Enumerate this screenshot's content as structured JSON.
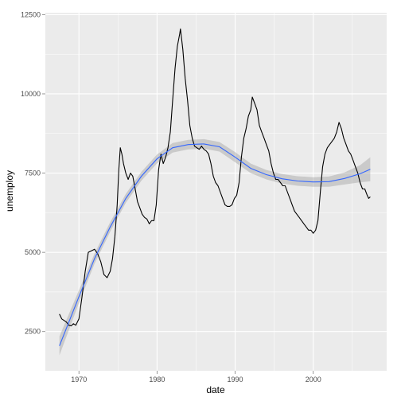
{
  "chart_data": {
    "type": "line",
    "xlabel": "date",
    "ylabel": "unemploy",
    "xlim": [
      1965.7,
      2009.4
    ],
    "ylim": [
      1263,
      12560
    ],
    "x_ticks": [
      1970,
      1980,
      1990,
      2000
    ],
    "y_ticks": [
      2500,
      5000,
      7500,
      10000,
      12500
    ],
    "grid": true,
    "colors": {
      "panel": "#ebebeb",
      "grid": "#ffffff",
      "data_line": "#000000",
      "smooth_line": "#3366ff",
      "ribbon": "#999999"
    },
    "series": [
      {
        "values_kind": "observed",
        "x": [
          1967.5,
          1967.8,
          1968.1,
          1968.4,
          1968.7,
          1969.0,
          1969.3,
          1969.6,
          1970.0,
          1970.4,
          1970.8,
          1971.2,
          1971.6,
          1972.0,
          1972.4,
          1972.8,
          1973.2,
          1973.6,
          1974.0,
          1974.3,
          1974.6,
          1974.9,
          1975.1,
          1975.3,
          1975.5,
          1975.7,
          1976.0,
          1976.3,
          1976.6,
          1976.9,
          1977.2,
          1977.5,
          1977.8,
          1978.1,
          1978.4,
          1978.7,
          1979.0,
          1979.3,
          1979.6,
          1979.9,
          1980.2,
          1980.5,
          1980.8,
          1981.1,
          1981.4,
          1981.7,
          1982.0,
          1982.3,
          1982.6,
          1982.9,
          1983.0,
          1983.3,
          1983.6,
          1983.9,
          1984.2,
          1984.5,
          1984.8,
          1985.1,
          1985.4,
          1985.7,
          1986.0,
          1986.3,
          1986.6,
          1986.9,
          1987.2,
          1987.5,
          1987.8,
          1988.1,
          1988.4,
          1988.7,
          1989.0,
          1989.3,
          1989.6,
          1989.9,
          1990.2,
          1990.5,
          1990.8,
          1991.1,
          1991.4,
          1991.7,
          1992.0,
          1992.2,
          1992.5,
          1992.8,
          1993.1,
          1993.4,
          1993.7,
          1994.0,
          1994.3,
          1994.6,
          1994.9,
          1995.2,
          1995.5,
          1995.8,
          1996.1,
          1996.4,
          1996.7,
          1997.0,
          1997.3,
          1997.6,
          1997.9,
          1998.2,
          1998.5,
          1998.8,
          1999.1,
          1999.4,
          1999.7,
          2000.0,
          2000.3,
          2000.6,
          2000.9,
          2001.2,
          2001.5,
          2001.8,
          2002.1,
          2002.4,
          2002.7,
          2003.0,
          2003.3,
          2003.6,
          2003.9,
          2004.2,
          2004.5,
          2004.8,
          2005.1,
          2005.4,
          2005.7,
          2006.0,
          2006.3,
          2006.6,
          2006.9,
          2007.1,
          2007.3
        ],
        "y": [
          3050,
          2900,
          2850,
          2800,
          2700,
          2680,
          2750,
          2700,
          2900,
          3600,
          4400,
          5000,
          5050,
          5100,
          4950,
          4700,
          4300,
          4200,
          4400,
          4800,
          5500,
          6500,
          7600,
          8300,
          8100,
          7800,
          7500,
          7300,
          7500,
          7400,
          7000,
          6600,
          6400,
          6200,
          6100,
          6050,
          5900,
          6000,
          6000,
          6500,
          7600,
          8100,
          7800,
          8000,
          8300,
          8800,
          9800,
          10800,
          11500,
          11900,
          12050,
          11400,
          10500,
          9800,
          9000,
          8600,
          8350,
          8300,
          8250,
          8350,
          8250,
          8200,
          8100,
          7800,
          7400,
          7200,
          7100,
          6900,
          6700,
          6500,
          6450,
          6450,
          6500,
          6700,
          6800,
          7200,
          8000,
          8600,
          8900,
          9300,
          9500,
          9900,
          9700,
          9500,
          9000,
          8800,
          8600,
          8400,
          8200,
          7800,
          7500,
          7300,
          7300,
          7200,
          7100,
          7100,
          6900,
          6700,
          6500,
          6300,
          6200,
          6100,
          6000,
          5900,
          5800,
          5700,
          5700,
          5600,
          5700,
          6000,
          6900,
          7700,
          8100,
          8300,
          8400,
          8500,
          8600,
          8800,
          9100,
          8900,
          8600,
          8400,
          8200,
          8100,
          7900,
          7700,
          7500,
          7200,
          7000,
          7000,
          6800,
          6700,
          6750
        ]
      },
      {
        "values_kind": "smoothed",
        "x": [
          1967.5,
          1970,
          1972,
          1974,
          1976,
          1978,
          1980,
          1982,
          1984,
          1986,
          1988,
          1990,
          1992,
          1994,
          1996,
          1998,
          2000,
          2002,
          2004,
          2006,
          2007.3
        ],
        "y": [
          2050,
          3600,
          4800,
          5800,
          6700,
          7400,
          7950,
          8300,
          8400,
          8420,
          8330,
          8000,
          7650,
          7450,
          7320,
          7250,
          7220,
          7230,
          7330,
          7480,
          7620
        ],
        "se": [
          300,
          200,
          160,
          150,
          140,
          140,
          140,
          150,
          150,
          150,
          150,
          160,
          150,
          150,
          150,
          150,
          150,
          160,
          190,
          270,
          380
        ]
      }
    ]
  }
}
